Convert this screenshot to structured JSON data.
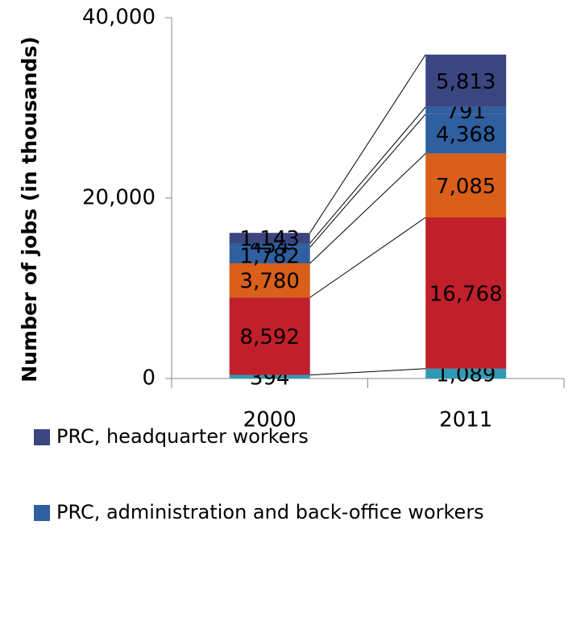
{
  "chart_data": {
    "type": "stacked_bar",
    "y_label": "Number of jobs (in thousands)",
    "categories": [
      "2000",
      "2011"
    ],
    "series": [
      {
        "color": "#2e9bb5",
        "values": [
          394,
          1089
        ],
        "value_labels": [
          "394",
          "1,089"
        ]
      },
      {
        "color": "#c11f2b",
        "values": [
          8592,
          16768
        ],
        "value_labels": [
          "8,592",
          "16,768"
        ]
      },
      {
        "color": "#d95f1a",
        "values": [
          3780,
          7085
        ],
        "value_labels": [
          "3,780",
          "7,085"
        ]
      },
      {
        "color": "#2f5f9f",
        "values": [
          1782,
          4368
        ],
        "value_labels": [
          "1,782",
          "4,368"
        ]
      },
      {
        "name": "PRC, administration and back-office workers",
        "color": "#2f5f9f",
        "values": [
          454,
          791
        ],
        "value_labels": [
          "454",
          "791"
        ]
      },
      {
        "name": "PRC, headquarter workers",
        "color": "#3b4680",
        "values": [
          1143,
          5813
        ],
        "value_labels": [
          "1,143",
          "5,813"
        ]
      }
    ],
    "ylim": [
      0,
      40000
    ],
    "yticks": [
      0,
      {
        "value": 20000,
        "label": "20,000"
      },
      {
        "value": 40000,
        "label": "40,000"
      }
    ]
  }
}
